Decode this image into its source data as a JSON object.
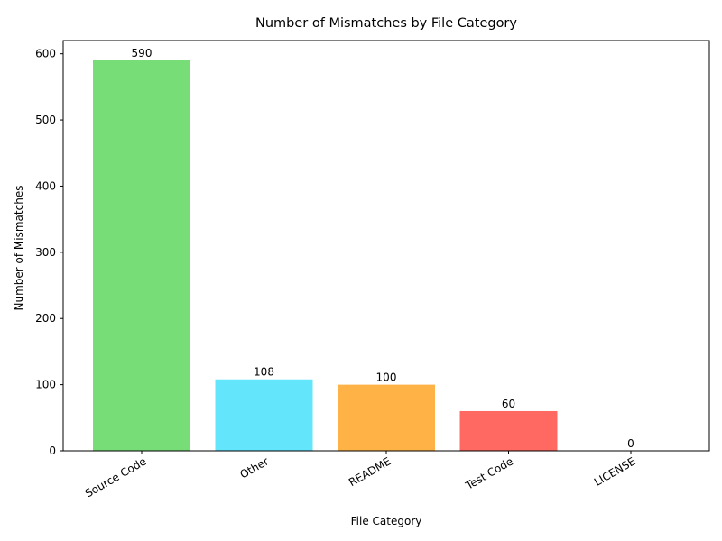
{
  "chart_data": {
    "type": "bar",
    "title": "Number of Mismatches by File Category",
    "xlabel": "File Category",
    "ylabel": "Number of Mismatches",
    "categories": [
      "Source Code",
      "Other",
      "README",
      "Test Code",
      "LICENSE"
    ],
    "values": [
      590,
      108,
      100,
      60,
      0
    ],
    "data_labels": [
      "590",
      "108",
      "100",
      "60",
      "0"
    ],
    "colors": [
      "#77dd77",
      "#63e5fb",
      "#ffb347",
      "#ff6961",
      "#c39bd3"
    ],
    "ylim": [
      0,
      620
    ],
    "yticks": [
      0,
      100,
      200,
      300,
      400,
      500,
      600
    ],
    "ytick_labels": [
      "0",
      "100",
      "200",
      "300",
      "400",
      "500",
      "600"
    ],
    "grid": false,
    "legend": "none"
  }
}
